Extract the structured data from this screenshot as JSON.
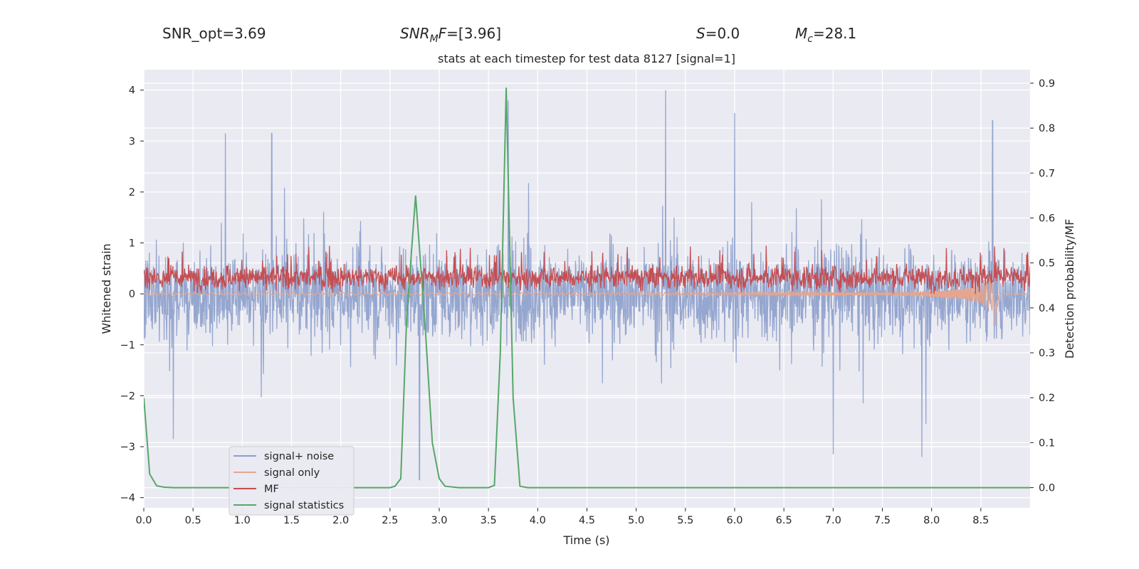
{
  "header": {
    "snr_opt": "SNR_opt=3.69",
    "snr_mf_main": "SNR",
    "snr_mf_sub": "M",
    "snr_mf_rest": "F=[3.96]",
    "s_label": "S",
    "s_rest": "=0.0",
    "mc_label": "M",
    "mc_sub": "c",
    "mc_rest": "=28.1"
  },
  "chart_data": {
    "type": "line",
    "title": "stats at each timestep for test data 8127 [signal=1]",
    "xlabel": "Time (s)",
    "ylabel_left": "Whitened strain",
    "ylabel_right": "Detection probability/MF",
    "xlim": [
      0.0,
      9.0
    ],
    "ylim_left": [
      -4.2,
      4.4
    ],
    "ylim_right": [
      -0.045,
      0.93
    ],
    "x_ticks": [
      "0.0",
      "0.5",
      "1.0",
      "1.5",
      "2.0",
      "2.5",
      "3.0",
      "3.5",
      "4.0",
      "4.5",
      "5.0",
      "5.5",
      "6.0",
      "6.5",
      "7.0",
      "7.5",
      "8.0",
      "8.5"
    ],
    "y_ticks_left": [
      "−4",
      "−3",
      "−2",
      "−1",
      "0",
      "1",
      "2",
      "3",
      "4"
    ],
    "y_ticks_right": [
      "0.0",
      "0.1",
      "0.2",
      "0.3",
      "0.4",
      "0.5",
      "0.6",
      "0.7",
      "0.8",
      "0.9"
    ],
    "colors": {
      "noise": "#8c9fcb",
      "signal": "#e6a58c",
      "mf": "#c44e52",
      "stats": "#55a868",
      "plot_bg": "#eaeaf2",
      "grid": "#ffffff"
    },
    "legend": {
      "position": "lower-left",
      "entries": [
        "signal+ noise",
        "signal only",
        "MF",
        "signal statistics"
      ]
    },
    "series": [
      {
        "name": "signal statistics",
        "axis": "right",
        "x": [
          0.0,
          0.06,
          0.13,
          0.2,
          0.3,
          1.0,
          2.0,
          2.5,
          2.55,
          2.61,
          2.67,
          2.76,
          2.86,
          2.93,
          3.0,
          3.06,
          3.2,
          3.5,
          3.56,
          3.62,
          3.68,
          3.75,
          3.82,
          3.9,
          5.0,
          7.0,
          9.0
        ],
        "values": [
          0.2,
          0.03,
          0.004,
          0.001,
          0.0,
          0.0,
          0.0,
          0.0,
          0.003,
          0.02,
          0.38,
          0.65,
          0.35,
          0.1,
          0.02,
          0.003,
          0.0,
          0.0,
          0.005,
          0.3,
          0.89,
          0.2,
          0.003,
          0.0,
          0.0,
          0.0,
          0.0
        ]
      },
      {
        "name": "signal only",
        "axis": "left",
        "description_x": [
          0.0,
          7.5,
          8.0,
          8.3,
          8.5,
          8.6,
          8.65,
          8.7
        ],
        "envelope": [
          0.02,
          0.03,
          0.06,
          0.1,
          0.18,
          0.3,
          0.4,
          0.0
        ],
        "negative_peak": -0.62,
        "ends_at": 8.7
      },
      {
        "name": "MF",
        "axis": "left",
        "typical_range": [
          0.0,
          0.7
        ],
        "peak": 0.95
      },
      {
        "name": "signal+ noise",
        "axis": "left",
        "typical_range": [
          -1.6,
          1.6
        ],
        "spikes": [
          {
            "x": 5.3,
            "y": 4.0
          },
          {
            "x": 6.0,
            "y": 3.55
          },
          {
            "x": 3.7,
            "y": 3.8
          },
          {
            "x": 8.62,
            "y": 3.4
          },
          {
            "x": 0.83,
            "y": 3.15
          },
          {
            "x": 1.3,
            "y": 3.15
          },
          {
            "x": 2.8,
            "y": -3.65
          },
          {
            "x": 7.0,
            "y": -3.15
          },
          {
            "x": 7.9,
            "y": -3.2
          },
          {
            "x": 0.3,
            "y": -2.85
          }
        ]
      }
    ]
  }
}
